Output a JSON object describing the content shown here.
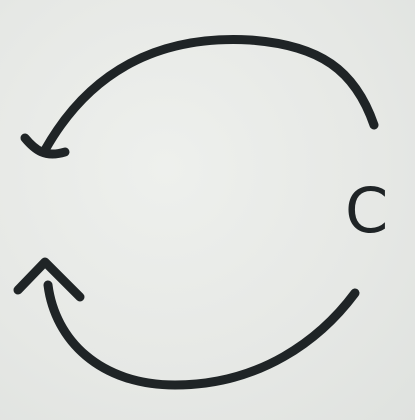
{
  "diagram": {
    "label": "C",
    "colors": {
      "ink": "#1f2426",
      "paper": "#e9ebe8"
    }
  }
}
